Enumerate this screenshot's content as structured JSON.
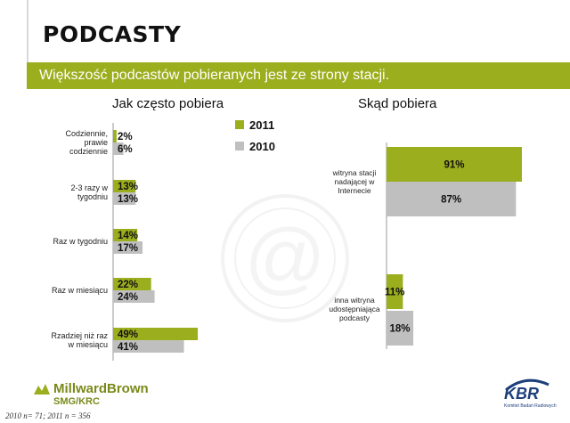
{
  "slide": {
    "title": "PODCASTY",
    "subtitle": "Większość podcastów pobieranych jest ze strony stacji."
  },
  "colors": {
    "series_2011": "#9bae1e",
    "series_2010": "#bfbfbf",
    "banner": "#9bae1e"
  },
  "chart_data": [
    {
      "type": "bar",
      "orientation": "horizontal",
      "title": "Jak często pobiera",
      "categories": [
        [
          "Codziennie,",
          "prawie",
          "codziennie"
        ],
        [
          "2-3 razy w",
          "tygodniu"
        ],
        [
          "Raz w tygodniu"
        ],
        [
          "Raz w miesiącu"
        ],
        [
          "Rzadziej niż raz",
          "w miesiącu"
        ]
      ],
      "series": [
        {
          "name": "2011",
          "values": [
            2,
            13,
            14,
            22,
            49
          ],
          "labels": [
            "2%",
            "13%",
            "14%",
            "22%",
            "49%"
          ]
        },
        {
          "name": "2010",
          "values": [
            6,
            13,
            17,
            24,
            41
          ],
          "labels": [
            "6%",
            "13%",
            "17%",
            "24%",
            "41%"
          ]
        }
      ],
      "legend": [
        "2011",
        "2010"
      ],
      "legend_position": "top-right",
      "xlim": [
        0,
        100
      ]
    },
    {
      "type": "bar",
      "orientation": "horizontal",
      "title": "Skąd pobiera",
      "categories": [
        [
          "witryna stacji",
          "nadającej w",
          "Internecie"
        ],
        [
          "inna witryna",
          "udostępniająca",
          "podcasty"
        ]
      ],
      "series": [
        {
          "name": "2011",
          "values": [
            91,
            11
          ],
          "labels": [
            "91%",
            "11%"
          ]
        },
        {
          "name": "2010",
          "values": [
            87,
            18
          ],
          "labels": [
            "87%",
            "18%"
          ]
        }
      ],
      "xlim": [
        0,
        100
      ]
    }
  ],
  "footer": {
    "logo_main": "MillwardBrown",
    "logo_sub": "SMG/KRC",
    "footnote": "2010 n= 71; 2011 n = 356",
    "kbr": "KBR",
    "kbr_sub": "Komitet Badań Radiowych"
  }
}
